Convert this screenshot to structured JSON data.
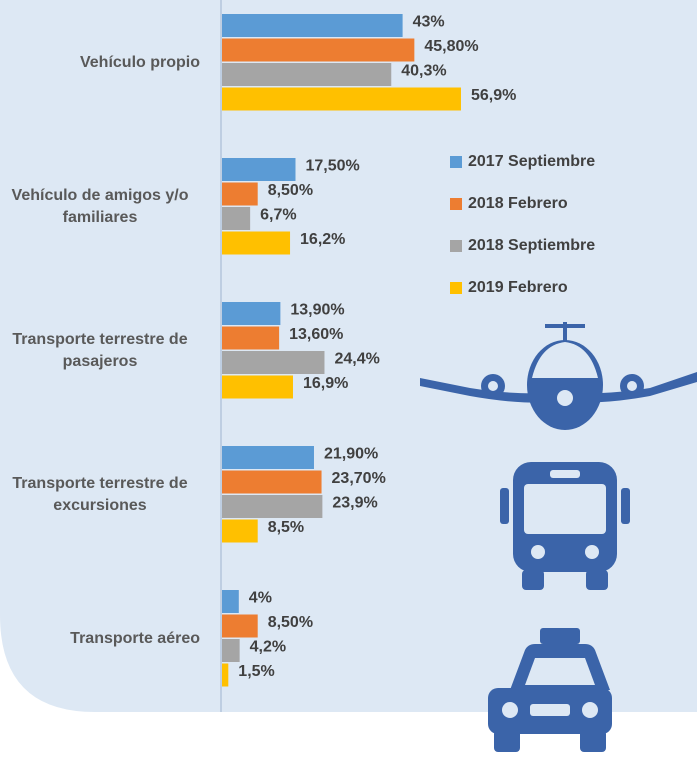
{
  "chart_data": {
    "type": "bar",
    "orientation": "horizontal",
    "categories": [
      "Vehículo propio",
      "Vehículo de amigos y/o familiares",
      "Transporte terrestre de pasajeros",
      "Transporte terrestre de excursiones",
      "Transporte aéreo"
    ],
    "series": [
      {
        "name": "2017 Septiembre",
        "color": "#5b9bd5",
        "values": [
          43,
          17.5,
          13.9,
          21.9,
          4
        ],
        "value_labels": [
          "43%",
          "17,50%",
          "13,90%",
          "21,90%",
          "4%"
        ]
      },
      {
        "name": "2018 Febrero",
        "color": "#ed7d31",
        "values": [
          45.8,
          8.5,
          13.6,
          23.7,
          8.5
        ],
        "value_labels": [
          "45,80%",
          "8,50%",
          "13,60%",
          "23,70%",
          "8,50%"
        ]
      },
      {
        "name": "2018 Septiembre",
        "color": "#a5a5a5",
        "values": [
          40.3,
          6.7,
          24.4,
          23.9,
          4.2
        ],
        "value_labels": [
          "40,3%",
          "6,7%",
          "24,4%",
          "23,9%",
          "4,2%"
        ]
      },
      {
        "name": "2019 Febrero",
        "color": "#ffc000",
        "values": [
          56.9,
          16.2,
          16.9,
          8.5,
          1.5
        ],
        "value_labels": [
          "56,9%",
          "16,2%",
          "16,9%",
          "8,5%",
          "1,5%"
        ]
      }
    ],
    "legend": "right"
  }
}
